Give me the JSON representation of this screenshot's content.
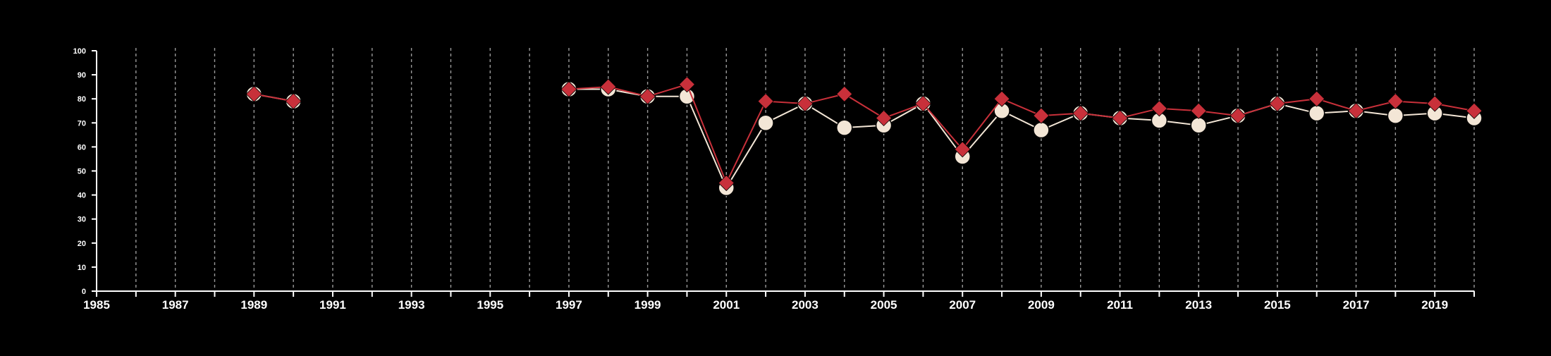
{
  "chart_data": {
    "type": "line",
    "title": "",
    "xlabel": "",
    "ylabel": "",
    "xlim": [
      1985,
      2020
    ],
    "ylim": [
      0,
      100
    ],
    "yticks": [
      0,
      10,
      20,
      30,
      40,
      50,
      60,
      70,
      80,
      90,
      100
    ],
    "xtick_labels": [
      "1985",
      "1987",
      "1989",
      "1991",
      "1993",
      "1995",
      "1997",
      "1999",
      "2001",
      "2003",
      "2005",
      "2007",
      "2009",
      "2011",
      "2013",
      "2015",
      "2017",
      "2019"
    ],
    "vertical_gridlines_every_year": true,
    "x": [
      1985,
      1986,
      1987,
      1988,
      1989,
      1990,
      1991,
      1992,
      1993,
      1994,
      1995,
      1996,
      1997,
      1998,
      1999,
      2000,
      2001,
      2002,
      2003,
      2004,
      2005,
      2006,
      2007,
      2008,
      2009,
      2010,
      2011,
      2012,
      2013,
      2014,
      2015,
      2016,
      2017,
      2018,
      2019,
      2020
    ],
    "series": [
      {
        "marker": "circle",
        "color": "#f3e6d6",
        "values": [
          null,
          null,
          null,
          null,
          82,
          79,
          null,
          null,
          null,
          null,
          null,
          null,
          84,
          84,
          81,
          81,
          43,
          70,
          78,
          68,
          69,
          78,
          56,
          75,
          67,
          74,
          72,
          71,
          69,
          73,
          78,
          74,
          75,
          73,
          74,
          72
        ]
      },
      {
        "marker": "diamond",
        "color": "#c8303a",
        "values": [
          null,
          null,
          null,
          null,
          82,
          79,
          null,
          null,
          null,
          null,
          null,
          null,
          84,
          85,
          81,
          86,
          45,
          79,
          78,
          82,
          72,
          78,
          59,
          80,
          73,
          74,
          72,
          76,
          75,
          73,
          78,
          80,
          75,
          79,
          78,
          75
        ]
      }
    ]
  }
}
